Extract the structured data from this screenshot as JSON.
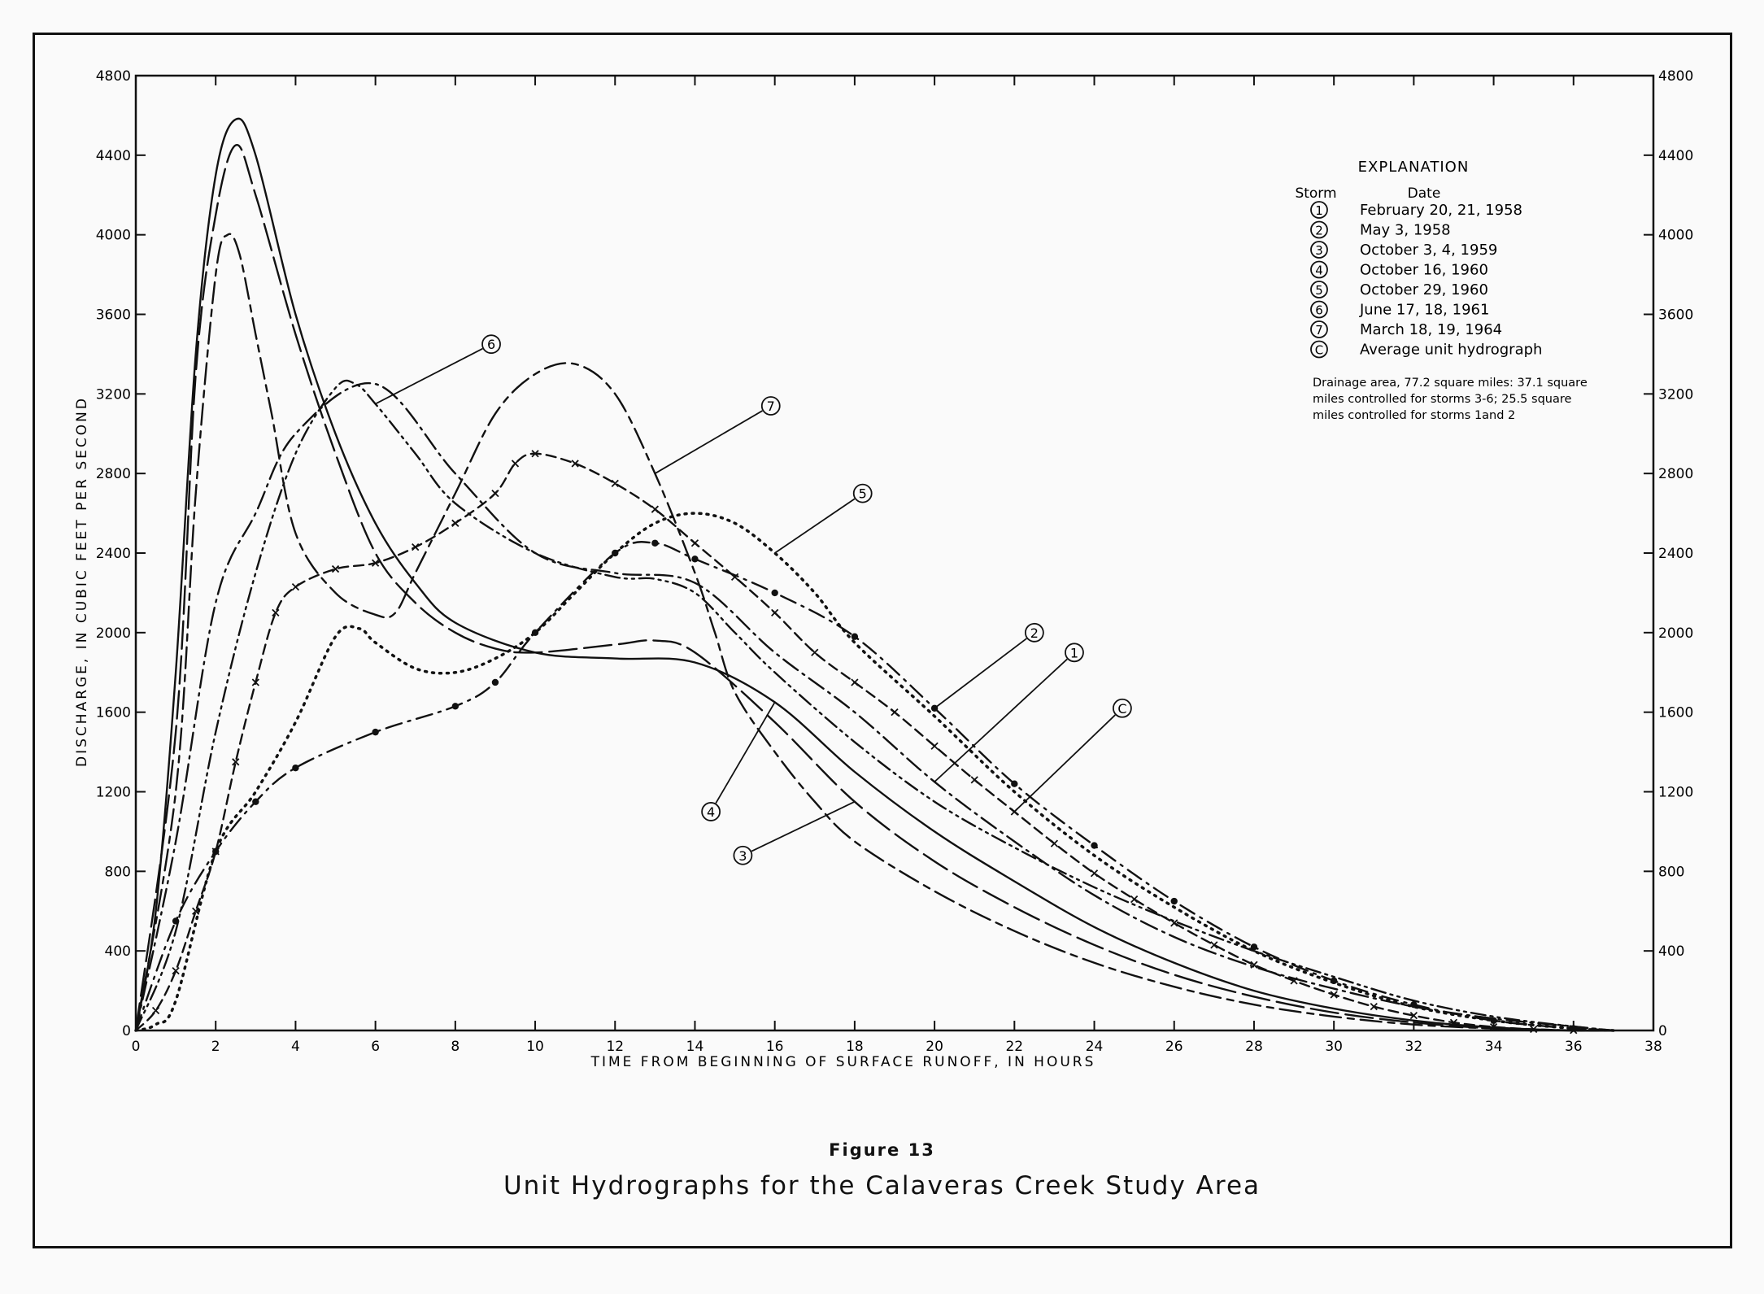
{
  "chart_data": {
    "type": "line",
    "title": "Unit Hydrographs for the Calaveras Creek Study Area",
    "figure_label": "Figure 13",
    "xlabel": "TIME FROM BEGINNING OF SURFACE RUNOFF, IN HOURS",
    "ylabel": "DISCHARGE, IN CUBIC FEET PER SECOND",
    "xlim": [
      0,
      38
    ],
    "ylim": [
      0,
      4800
    ],
    "x_ticks": [
      0,
      2,
      4,
      6,
      8,
      10,
      12,
      14,
      16,
      18,
      20,
      22,
      24,
      26,
      28,
      30,
      32,
      34,
      36,
      38
    ],
    "y_ticks": [
      0,
      400,
      800,
      1200,
      1600,
      2000,
      2400,
      2800,
      3200,
      3600,
      4000,
      4400,
      4800
    ],
    "grid": false,
    "legend_position": "top-right",
    "legend": {
      "heading": "EXPLANATION",
      "col_storm": "Storm",
      "col_date": "Date",
      "note_lines": [
        "Drainage area, 77.2 square miles: 37.1 square",
        "miles controlled for storms 3-6; 25.5 square",
        "miles controlled for storms 1and 2"
      ]
    },
    "series": [
      {
        "id": "1",
        "name": "February 20, 21, 1958",
        "style": "longdash-dot",
        "x": [
          0,
          1,
          2,
          3,
          4,
          6,
          8,
          10,
          12,
          14,
          16,
          18,
          20,
          22,
          24,
          26,
          28,
          30,
          32,
          34,
          36,
          37
        ],
        "y": [
          0,
          950,
          2150,
          2600,
          3000,
          3250,
          2800,
          2400,
          2300,
          2250,
          1900,
          1600,
          1250,
          950,
          680,
          470,
          320,
          210,
          120,
          60,
          20,
          0
        ],
        "label_pos": [
          23.5,
          1900
        ]
      },
      {
        "id": "2",
        "name": "May 3, 1958",
        "style": "dash-dot-markers",
        "x": [
          0,
          1,
          2,
          3,
          4,
          6,
          8,
          9,
          10,
          12,
          13,
          14,
          16,
          18,
          20,
          22,
          24,
          26,
          28,
          30,
          32,
          34,
          36,
          37
        ],
        "y": [
          0,
          550,
          900,
          1150,
          1320,
          1500,
          1630,
          1750,
          2000,
          2400,
          2450,
          2370,
          2200,
          1980,
          1620,
          1240,
          930,
          650,
          420,
          250,
          130,
          50,
          10,
          0
        ],
        "label_pos": [
          22.5,
          2000
        ]
      },
      {
        "id": "3",
        "name": "October 3, 4, 1959",
        "style": "longdash",
        "x": [
          0,
          1,
          1.5,
          2,
          2.5,
          3,
          4,
          5,
          6,
          7,
          8,
          9,
          10,
          12,
          13,
          14,
          16,
          18,
          20,
          22,
          24,
          26,
          28,
          30,
          32,
          34,
          36,
          37
        ],
        "y": [
          0,
          1500,
          3300,
          4100,
          4450,
          4200,
          3500,
          2900,
          2400,
          2150,
          2000,
          1920,
          1900,
          1940,
          1960,
          1900,
          1550,
          1150,
          850,
          620,
          430,
          280,
          170,
          90,
          40,
          10,
          0,
          0
        ],
        "label_pos": [
          15.2,
          880
        ]
      },
      {
        "id": "4",
        "name": "October 16, 1960",
        "style": "solid",
        "x": [
          0,
          0.5,
          1,
          1.5,
          2,
          2.5,
          3,
          4,
          5,
          6,
          7,
          8,
          10,
          12,
          14,
          16,
          18,
          20,
          22,
          24,
          26,
          28,
          30,
          32,
          34,
          36,
          37
        ],
        "y": [
          0,
          600,
          1800,
          3400,
          4300,
          4580,
          4400,
          3600,
          3000,
          2550,
          2250,
          2050,
          1900,
          1870,
          1850,
          1650,
          1300,
          1000,
          750,
          520,
          340,
          200,
          110,
          50,
          15,
          0,
          0
        ],
        "label_pos": [
          14.4,
          1100
        ]
      },
      {
        "id": "5",
        "name": "October 29, 1960",
        "style": "dotted",
        "x": [
          0,
          0.5,
          1,
          2,
          3,
          4,
          5,
          5.6,
          6,
          7,
          8,
          9,
          10,
          11,
          12,
          13,
          14,
          15,
          16,
          17,
          18,
          20,
          22,
          24,
          26,
          28,
          30,
          32,
          34,
          36,
          37
        ],
        "y": [
          0,
          30,
          150,
          900,
          1200,
          1550,
          1980,
          2020,
          1950,
          1820,
          1800,
          1870,
          2000,
          2200,
          2400,
          2550,
          2600,
          2550,
          2400,
          2200,
          1950,
          1580,
          1200,
          880,
          620,
          400,
          240,
          120,
          50,
          10,
          0
        ],
        "label_pos": [
          18.2,
          2700
        ]
      },
      {
        "id": "6",
        "name": "June 17, 18, 1961",
        "style": "dash-dot-dot",
        "x": [
          0,
          1,
          2,
          3,
          4,
          5,
          5.5,
          6,
          7,
          8,
          10,
          12,
          13,
          14,
          15,
          16,
          18,
          20,
          22,
          24,
          26,
          28,
          30,
          32,
          34,
          36,
          37
        ],
        "y": [
          0,
          500,
          1500,
          2300,
          2900,
          3230,
          3250,
          3150,
          2900,
          2650,
          2400,
          2280,
          2270,
          2200,
          2000,
          1800,
          1450,
          1150,
          920,
          720,
          550,
          400,
          270,
          150,
          70,
          20,
          0
        ],
        "label_pos": [
          8.9,
          3450
        ]
      },
      {
        "id": "7",
        "name": "March 18, 19, 1964",
        "style": "longdash-short",
        "x": [
          0,
          1,
          1.5,
          2,
          2.3,
          2.6,
          3,
          3.4,
          4,
          5,
          6,
          6.5,
          7,
          8,
          9,
          10,
          11,
          12,
          13,
          14,
          14.5,
          15,
          16,
          17,
          18,
          20,
          22,
          24,
          26,
          28,
          30,
          32,
          34,
          36,
          37
        ],
        "y": [
          0,
          1200,
          2700,
          3800,
          4000,
          3900,
          3500,
          3100,
          2500,
          2200,
          2090,
          2100,
          2300,
          2700,
          3100,
          3300,
          3350,
          3200,
          2800,
          2300,
          2000,
          1700,
          1400,
          1150,
          950,
          700,
          500,
          340,
          220,
          130,
          70,
          30,
          10,
          0,
          0
        ],
        "label_pos": [
          15.9,
          3140
        ]
      },
      {
        "id": "C",
        "name": "Average unit hydrograph",
        "style": "dashed-x",
        "x": [
          0,
          0.5,
          1,
          1.5,
          2,
          2.5,
          3,
          3.5,
          4,
          5,
          6,
          7,
          8,
          9,
          9.5,
          10,
          11,
          12,
          13,
          14,
          15,
          16,
          17,
          18,
          19,
          20,
          21,
          22,
          23,
          24,
          25,
          26,
          27,
          28,
          29,
          30,
          31,
          32,
          33,
          34,
          35,
          36,
          37
        ],
        "y": [
          0,
          100,
          300,
          600,
          900,
          1350,
          1750,
          2100,
          2230,
          2320,
          2350,
          2430,
          2550,
          2700,
          2850,
          2900,
          2850,
          2750,
          2620,
          2450,
          2280,
          2100,
          1900,
          1750,
          1600,
          1430,
          1260,
          1100,
          940,
          790,
          660,
          540,
          430,
          330,
          250,
          180,
          120,
          75,
          40,
          18,
          6,
          1,
          0
        ],
        "label_pos": [
          24.7,
          1620
        ]
      }
    ]
  }
}
